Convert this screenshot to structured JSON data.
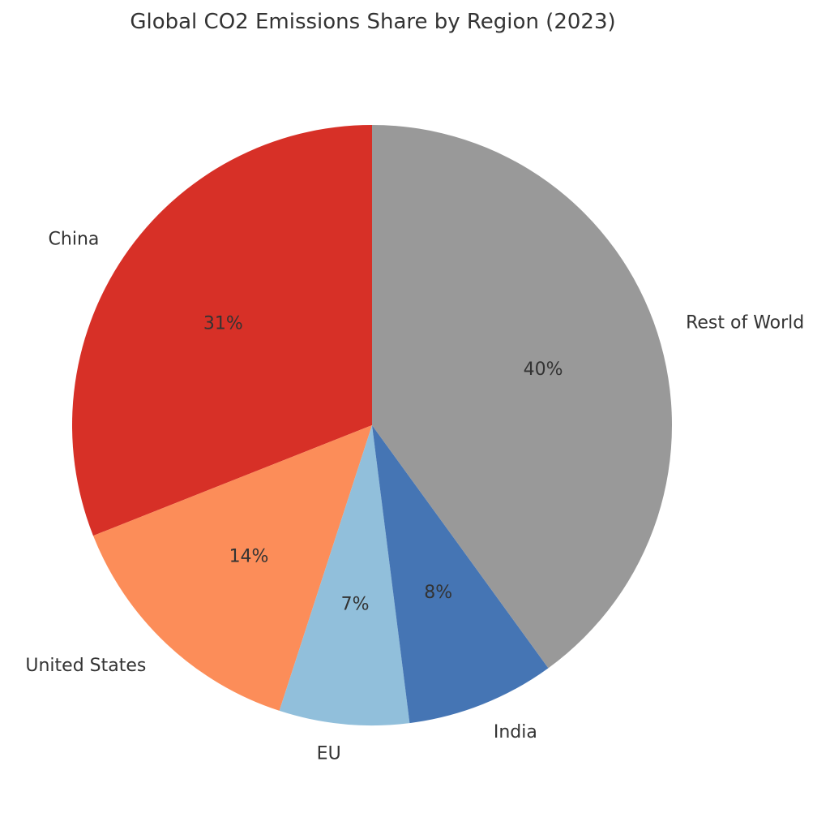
{
  "chart_data": {
    "type": "pie",
    "title": "Global CO2 Emissions Share by Region (2023)",
    "categories": [
      "China",
      "United States",
      "EU",
      "India",
      "Rest of World"
    ],
    "values": [
      31,
      14,
      7,
      8,
      40
    ],
    "value_labels": [
      "31%",
      "14%",
      "7%",
      "8%",
      "40%"
    ],
    "colors": [
      "#d73027",
      "#fc8d59",
      "#91bfdb",
      "#4575b4",
      "#999999"
    ],
    "start_angle_deg": 90,
    "direction": "counterclockwise",
    "legend": "none"
  }
}
